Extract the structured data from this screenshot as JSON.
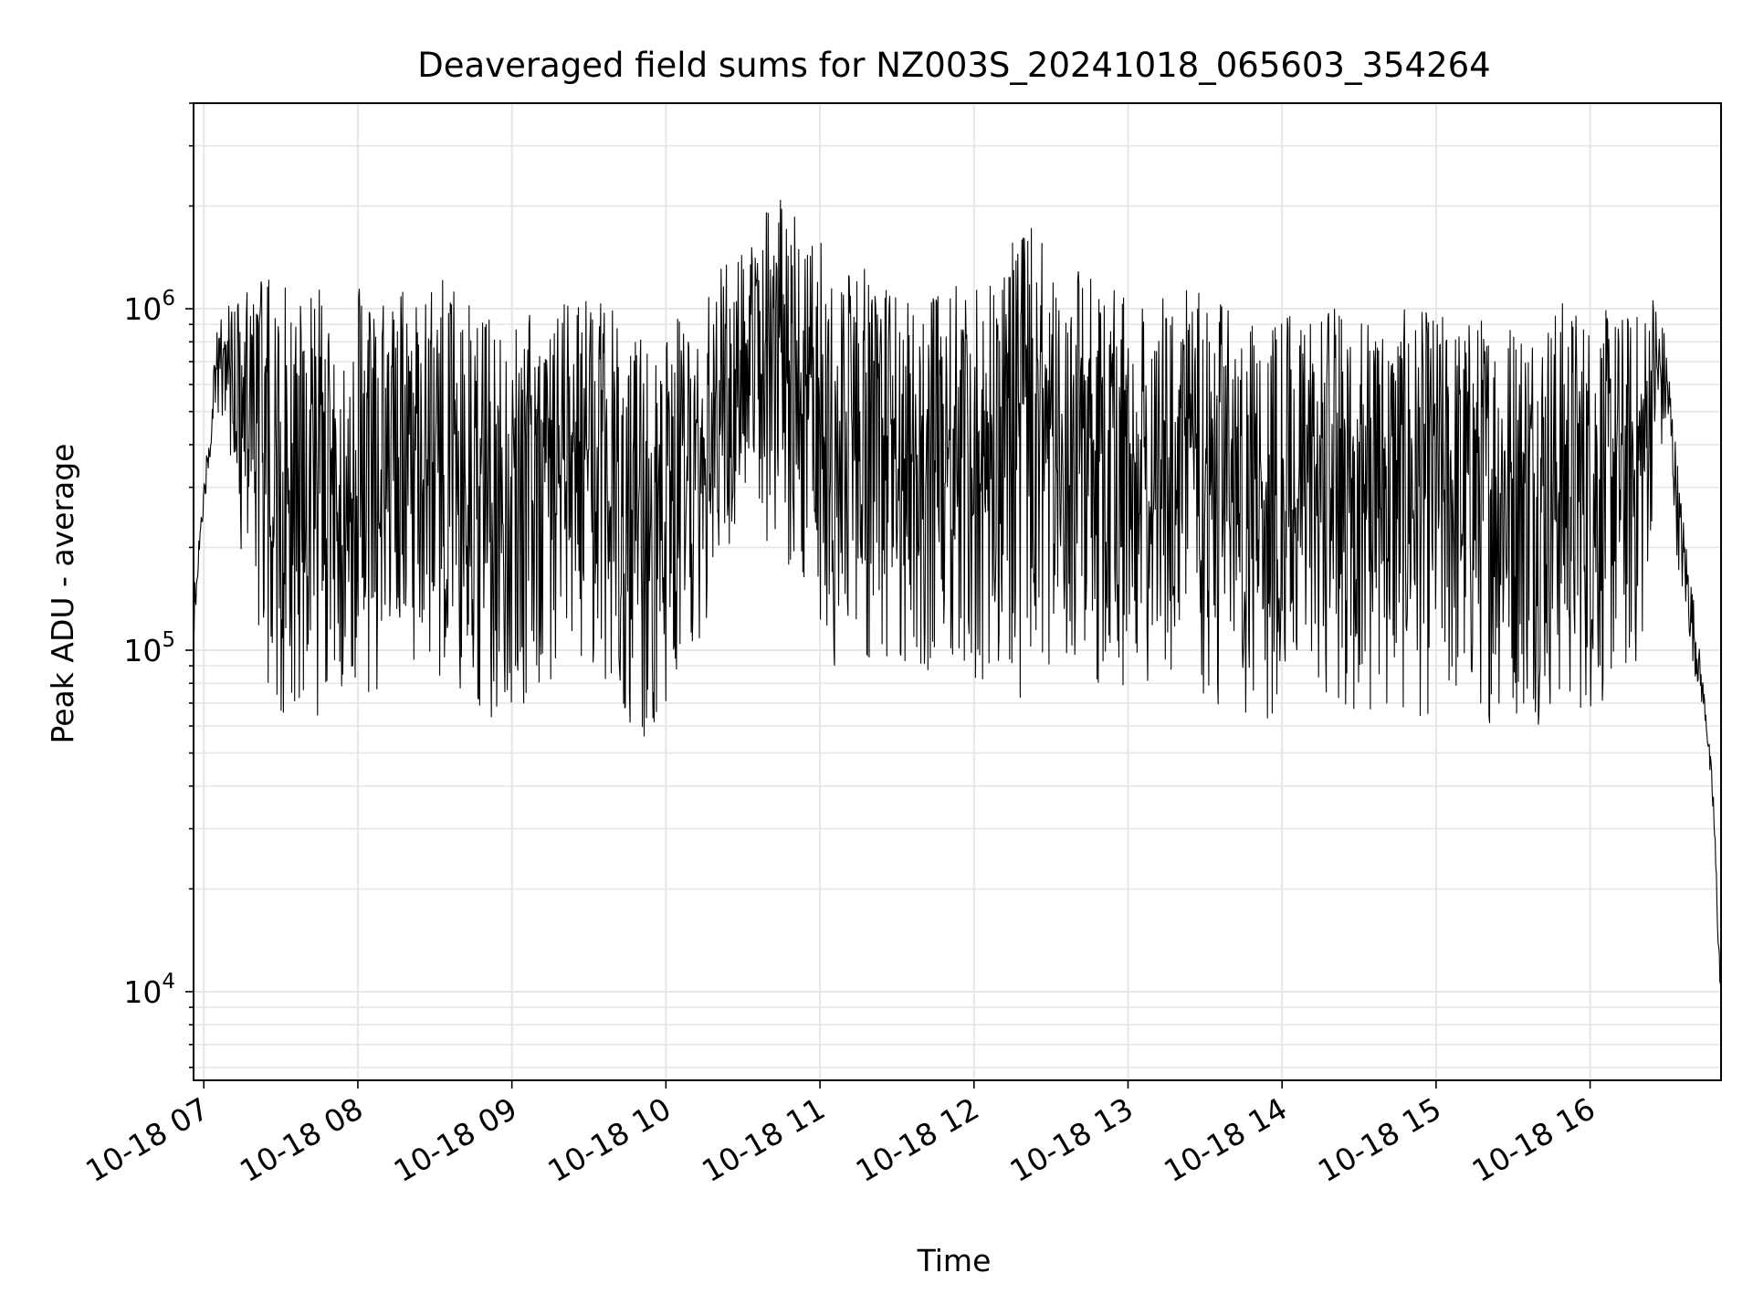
{
  "chart_data": {
    "type": "line",
    "title": "Deaveraged field sums for NZ003S_20241018_065603_354264",
    "xlabel": "Time",
    "ylabel": "Peak ADU - average",
    "yscale": "log",
    "ylim": [
      5500,
      4000000
    ],
    "xlim": [
      "2024-10-18 06:56",
      "2024-10-18 16:51"
    ],
    "grid": true,
    "x_tick_labels": [
      "10-18 07",
      "10-18 08",
      "10-18 09",
      "10-18 10",
      "10-18 11",
      "10-18 12",
      "10-18 13",
      "10-18 14",
      "10-18 15",
      "10-18 16"
    ],
    "y_tick_labels": [
      {
        "base": "10",
        "exp": "4",
        "value": 10000
      },
      {
        "base": "10",
        "exp": "5",
        "value": 100000
      },
      {
        "base": "10",
        "exp": "6",
        "value": 1000000
      }
    ],
    "line_color": "#000000",
    "series": [
      {
        "x": [
          "2024-10-18 06:56",
          "2024-10-18 07:00",
          "2024-10-18 07:05",
          "2024-10-18 07:10",
          "2024-10-18 07:15",
          "2024-10-18 07:20",
          "2024-10-18 07:25",
          "2024-10-18 07:30",
          "2024-10-18 07:35",
          "2024-10-18 07:40",
          "2024-10-18 07:45",
          "2024-10-18 07:50",
          "2024-10-18 07:55",
          "2024-10-18 08:00",
          "2024-10-18 08:10",
          "2024-10-18 08:20",
          "2024-10-18 08:30",
          "2024-10-18 08:40",
          "2024-10-18 08:50",
          "2024-10-18 09:00",
          "2024-10-18 09:10",
          "2024-10-18 09:20",
          "2024-10-18 09:30",
          "2024-10-18 09:40",
          "2024-10-18 09:50",
          "2024-10-18 10:00",
          "2024-10-18 10:10",
          "2024-10-18 10:20",
          "2024-10-18 10:30",
          "2024-10-18 10:40",
          "2024-10-18 10:50",
          "2024-10-18 11:00",
          "2024-10-18 11:10",
          "2024-10-18 11:20",
          "2024-10-18 11:30",
          "2024-10-18 11:40",
          "2024-10-18 11:50",
          "2024-10-18 12:00",
          "2024-10-18 12:10",
          "2024-10-18 12:20",
          "2024-10-18 12:30",
          "2024-10-18 12:40",
          "2024-10-18 12:50",
          "2024-10-18 13:00",
          "2024-10-18 13:10",
          "2024-10-18 13:20",
          "2024-10-18 13:30",
          "2024-10-18 13:40",
          "2024-10-18 13:50",
          "2024-10-18 14:00",
          "2024-10-18 14:10",
          "2024-10-18 14:20",
          "2024-10-18 14:30",
          "2024-10-18 14:40",
          "2024-10-18 14:50",
          "2024-10-18 15:00",
          "2024-10-18 15:10",
          "2024-10-18 15:20",
          "2024-10-18 15:30",
          "2024-10-18 15:40",
          "2024-10-18 15:50",
          "2024-10-18 16:00",
          "2024-10-18 16:10",
          "2024-10-18 16:20",
          "2024-10-18 16:25",
          "2024-10-18 16:30",
          "2024-10-18 16:35",
          "2024-10-18 16:40",
          "2024-10-18 16:45",
          "2024-10-18 16:48",
          "2024-10-18 16:51"
        ],
        "low": [
          100000,
          250000,
          500000,
          350000,
          180000,
          90000,
          70000,
          55000,
          50000,
          50000,
          60000,
          70000,
          70000,
          65000,
          70000,
          90000,
          90000,
          60000,
          60000,
          60000,
          70000,
          90000,
          70000,
          60000,
          50000,
          60000,
          90000,
          150000,
          200000,
          200000,
          150000,
          100000,
          80000,
          80000,
          90000,
          80000,
          70000,
          70000,
          60000,
          50000,
          90000,
          80000,
          80000,
          70000,
          70000,
          80000,
          70000,
          60000,
          60000,
          60000,
          60000,
          70000,
          60000,
          60000,
          60000,
          60000,
          60000,
          60000,
          60000,
          60000,
          60000,
          60000,
          70000,
          80000,
          300000,
          400000,
          150000,
          90000,
          60000,
          30000,
          8000
        ],
        "high": [
          150000,
          300000,
          900000,
          1100000,
          1100000,
          1200000,
          1300000,
          1200000,
          1100000,
          1200000,
          1200000,
          1100000,
          1200000,
          1200000,
          1100000,
          1200000,
          1300000,
          1100000,
          1000000,
          1000000,
          1000000,
          1100000,
          1100000,
          1000000,
          900000,
          900000,
          1000000,
          1300000,
          1500000,
          2200000,
          2000000,
          1600000,
          1400000,
          1300000,
          1200000,
          1100000,
          1200000,
          1300000,
          1200000,
          2200000,
          1300000,
          1300000,
          1200000,
          1100000,
          1100000,
          1200000,
          1100000,
          1000000,
          1000000,
          1000000,
          1000000,
          1000000,
          1000000,
          1000000,
          1000000,
          1000000,
          950000,
          1000000,
          1000000,
          1000000,
          1100000,
          1000000,
          1000000,
          1000000,
          1200000,
          800000,
          300000,
          150000,
          70000,
          40000,
          10000
        ]
      }
    ]
  }
}
